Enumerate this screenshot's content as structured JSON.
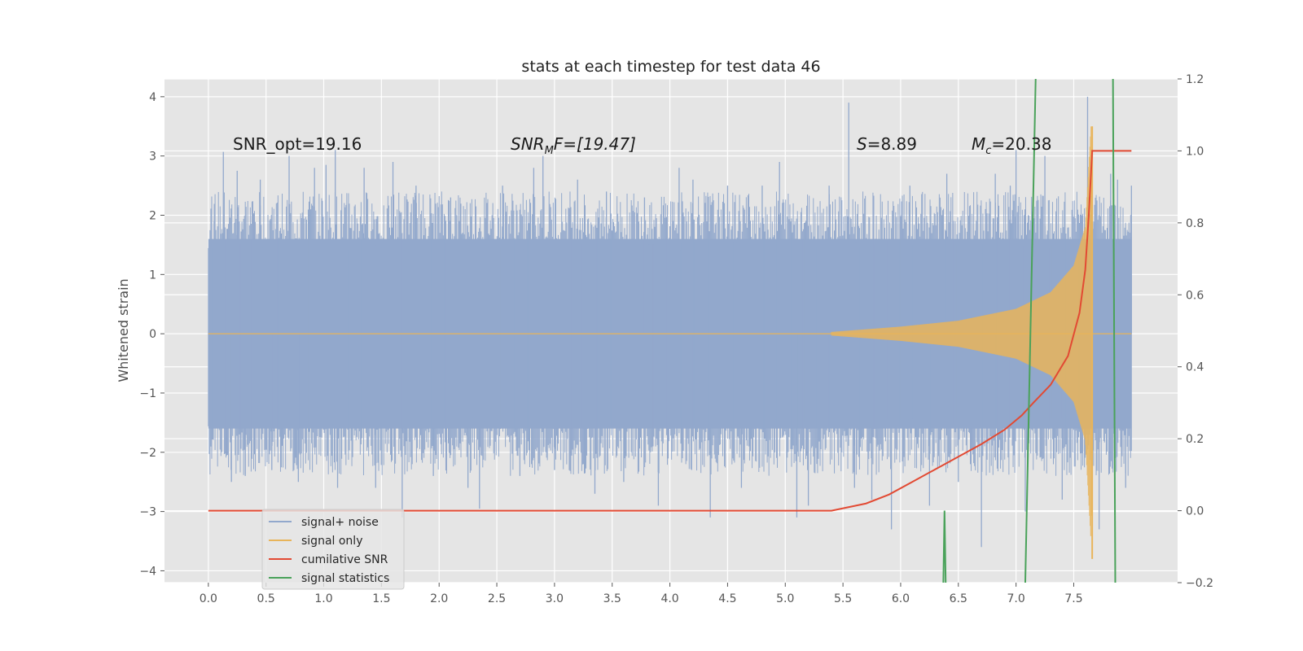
{
  "chart_data": {
    "type": "line",
    "title": "stats at each timestep for test data 46",
    "ylabel": "Whitened strain",
    "xlim": [
      -0.38,
      8.4
    ],
    "ylim": [
      -4.2,
      4.3
    ],
    "y2lim": [
      -0.2,
      1.2
    ],
    "xticks": [
      "0.0",
      "0.5",
      "1.0",
      "1.5",
      "2.0",
      "2.5",
      "3.0",
      "3.5",
      "4.0",
      "4.5",
      "5.0",
      "5.5",
      "6.0",
      "6.5",
      "7.0",
      "7.5"
    ],
    "yticks": [
      "−4",
      "−3",
      "−2",
      "−1",
      "0",
      "1",
      "2",
      "3",
      "4"
    ],
    "y2ticks": [
      "−0.2",
      "0.0",
      "0.2",
      "0.4",
      "0.6",
      "0.8",
      "1.0",
      "1.2"
    ],
    "grid": true,
    "legend": "lower-left",
    "annotations": {
      "snr_opt": "SNR_opt=19.16",
      "snr_mf_pre": "SNR",
      "snr_mf_sub": "M",
      "snr_mf_post": "F=[19.47]",
      "s_label": "S",
      "s_value": "=8.89",
      "mc_label": "M",
      "mc_sub": "c",
      "mc_value": "=20.38"
    },
    "series": [
      {
        "name": "signal+ noise",
        "axis": "left",
        "color": "#92a8cc",
        "x_range": [
          0.0,
          8.0
        ],
        "band": {
          "lower": -1.6,
          "upper": 1.6
        },
        "noise_spikes": [
          [
            0.05,
            1.9
          ],
          [
            0.13,
            3.07
          ],
          [
            0.2,
            -2.5
          ],
          [
            0.25,
            2.75
          ],
          [
            0.32,
            -2.4
          ],
          [
            0.45,
            2.6
          ],
          [
            0.55,
            -2.3
          ],
          [
            0.7,
            3.0
          ],
          [
            0.78,
            -2.5
          ],
          [
            0.92,
            2.8
          ],
          [
            1.02,
            2.85
          ],
          [
            1.12,
            -2.6
          ],
          [
            1.1,
            3.1
          ],
          [
            1.35,
            2.8
          ],
          [
            1.45,
            -2.6
          ],
          [
            1.6,
            2.9
          ],
          [
            1.68,
            -3.1
          ],
          [
            1.8,
            2.5
          ],
          [
            1.95,
            -2.4
          ],
          [
            2.1,
            2.3
          ],
          [
            2.25,
            -2.6
          ],
          [
            2.35,
            -2.95
          ],
          [
            2.55,
            2.5
          ],
          [
            2.7,
            -2.4
          ],
          [
            2.82,
            2.8
          ],
          [
            2.9,
            3.0
          ],
          [
            3.0,
            -2.3
          ],
          [
            3.2,
            2.6
          ],
          [
            3.35,
            -2.7
          ],
          [
            3.45,
            2.4
          ],
          [
            3.6,
            -2.5
          ],
          [
            3.78,
            2.3
          ],
          [
            3.9,
            -2.9
          ],
          [
            4.08,
            2.8
          ],
          [
            4.2,
            2.6
          ],
          [
            4.35,
            -3.1
          ],
          [
            4.5,
            2.5
          ],
          [
            4.62,
            -2.6
          ],
          [
            4.8,
            2.5
          ],
          [
            4.95,
            2.9
          ],
          [
            5.1,
            -3.1
          ],
          [
            5.2,
            -2.9
          ],
          [
            5.38,
            2.5
          ],
          [
            5.55,
            3.9
          ],
          [
            5.6,
            -2.6
          ],
          [
            5.75,
            -2.8
          ],
          [
            5.92,
            -3.3
          ],
          [
            6.08,
            2.5
          ],
          [
            6.25,
            -2.9
          ],
          [
            6.4,
            2.7
          ],
          [
            6.5,
            -2.5
          ],
          [
            6.7,
            -3.6
          ],
          [
            6.82,
            2.7
          ],
          [
            6.95,
            2.5
          ],
          [
            7.0,
            3.1
          ],
          [
            7.08,
            -3.0
          ],
          [
            7.15,
            2.5
          ],
          [
            7.25,
            3.0
          ],
          [
            7.4,
            -2.8
          ],
          [
            7.62,
            4.0
          ],
          [
            7.72,
            -3.3
          ],
          [
            7.82,
            2.7
          ],
          [
            7.88,
            2.6
          ],
          [
            7.95,
            -2.6
          ],
          [
            8.0,
            2.5
          ]
        ]
      },
      {
        "name": "signal only",
        "axis": "left",
        "color": "#e8b45a",
        "x_range": [
          0.0,
          8.0
        ],
        "envelope": [
          [
            0.0,
            0.02
          ],
          [
            5.4,
            0.03
          ],
          [
            6.0,
            0.12
          ],
          [
            6.5,
            0.22
          ],
          [
            7.0,
            0.42
          ],
          [
            7.3,
            0.7
          ],
          [
            7.5,
            1.15
          ],
          [
            7.6,
            1.8
          ],
          [
            7.65,
            3.5
          ],
          [
            7.67,
            0.02
          ]
        ],
        "lower_extreme": -3.8,
        "upper_extreme": 3.5,
        "merge_time": 7.66
      },
      {
        "name": "cumilative SNR",
        "axis": "right",
        "color": "#e24a33",
        "x": [
          0.0,
          5.4,
          5.7,
          5.9,
          6.1,
          6.3,
          6.5,
          6.7,
          6.9,
          7.05,
          7.15,
          7.3,
          7.45,
          7.55,
          7.6,
          7.63,
          7.66,
          7.68,
          8.0
        ],
        "y": [
          0.0,
          0.0,
          0.02,
          0.045,
          0.08,
          0.115,
          0.15,
          0.185,
          0.225,
          0.265,
          0.3,
          0.35,
          0.43,
          0.55,
          0.67,
          0.82,
          1.0,
          1.0,
          1.0
        ]
      },
      {
        "name": "signal statistics",
        "axis": "right",
        "color": "#4aa25a",
        "segments": [
          {
            "x": [
              6.37,
              6.38,
              6.39
            ],
            "y": [
              -0.2,
              0.0,
              -0.2
            ]
          },
          {
            "x": [
              7.08,
              7.17
            ],
            "y": [
              -0.2,
              1.2
            ]
          },
          {
            "x": [
              7.84,
              7.86
            ],
            "y": [
              1.2,
              -0.2
            ]
          }
        ]
      }
    ]
  }
}
